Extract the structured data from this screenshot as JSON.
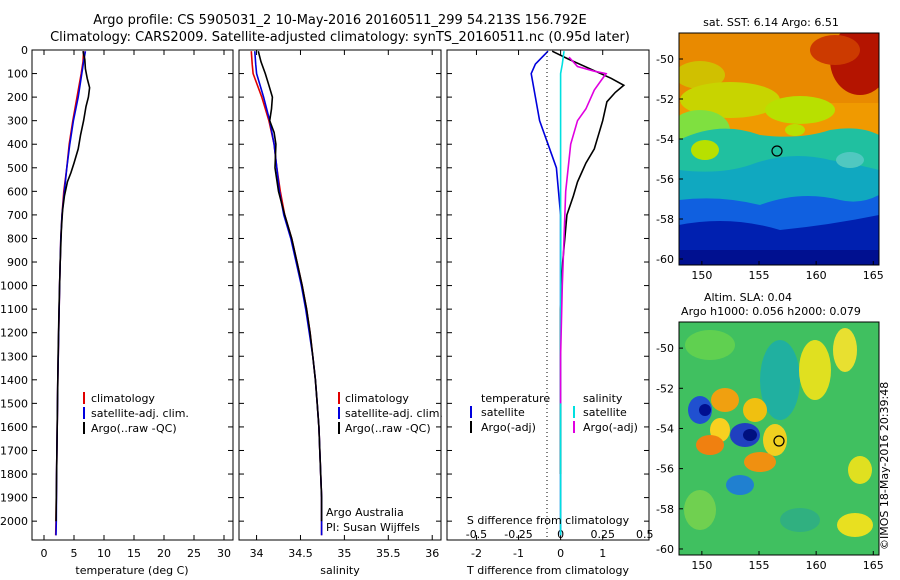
{
  "header": {
    "title": "Argo profile: CS 5905031_2 10-May-2016 20160511_299 54.213S 156.792E",
    "subtitle": "Climatology: CARS2009. Satellite-adjusted climatology: synTS_20160511.nc (0.95d later)"
  },
  "colors": {
    "climatology": "#e00000",
    "satellite": "#0000dd",
    "argo": "#000000",
    "satellite_salinity": "#00e0e0",
    "argo_salinity": "#e000e0"
  },
  "credits": {
    "line1": "Argo Australia",
    "line2": "PI: Susan Wijffels"
  },
  "stamp": "©IMOS 18-May-2016 20:39:48",
  "chart_data": [
    {
      "id": "temperature",
      "type": "line",
      "xlabel": "temperature (deg C)",
      "ylabel": "",
      "xlim": [
        -2,
        31.5
      ],
      "ylim": [
        2080,
        0
      ],
      "xticks": [
        0,
        5,
        10,
        15,
        20,
        25,
        30
      ],
      "yticks": [
        0,
        100,
        200,
        300,
        400,
        500,
        600,
        700,
        800,
        900,
        1000,
        1100,
        1200,
        1300,
        1400,
        1500,
        1600,
        1700,
        1800,
        1900,
        2000
      ],
      "legend": [
        "climatology",
        "satellite-adj. clim.",
        "Argo(..raw -QC)"
      ],
      "series": [
        {
          "name": "climatology",
          "color": "#e00000",
          "points": [
            [
              6.6,
              5
            ],
            [
              6.5,
              50
            ],
            [
              6.2,
              100
            ],
            [
              5.5,
              200
            ],
            [
              4.8,
              300
            ],
            [
              4.2,
              400
            ],
            [
              3.8,
              500
            ],
            [
              3.3,
              600
            ],
            [
              3.0,
              700
            ],
            [
              2.8,
              800
            ],
            [
              2.6,
              1000
            ],
            [
              2.45,
              1200
            ],
            [
              2.3,
              1400
            ],
            [
              2.2,
              1600
            ],
            [
              2.1,
              1800
            ],
            [
              2.0,
              2000
            ],
            [
              1.95,
              2060
            ]
          ]
        },
        {
          "name": "satellite-adj. clim.",
          "color": "#0000dd",
          "points": [
            [
              6.9,
              5
            ],
            [
              6.6,
              50
            ],
            [
              6.3,
              100
            ],
            [
              5.7,
              200
            ],
            [
              4.9,
              300
            ],
            [
              4.3,
              400
            ],
            [
              3.8,
              500
            ],
            [
              3.4,
              600
            ],
            [
              3.0,
              700
            ],
            [
              2.8,
              800
            ],
            [
              2.6,
              1000
            ],
            [
              2.45,
              1200
            ],
            [
              2.3,
              1400
            ],
            [
              2.2,
              1600
            ],
            [
              2.1,
              1800
            ],
            [
              2.05,
              2000
            ],
            [
              2.0,
              2060
            ]
          ]
        },
        {
          "name": "Argo(..raw -QC)",
          "color": "#000000",
          "points": [
            [
              6.5,
              5
            ],
            [
              6.8,
              40
            ],
            [
              6.9,
              80
            ],
            [
              7.2,
              120
            ],
            [
              7.6,
              160
            ],
            [
              7.4,
              200
            ],
            [
              7.0,
              240
            ],
            [
              6.6,
              300
            ],
            [
              6.1,
              360
            ],
            [
              5.7,
              420
            ],
            [
              5.0,
              480
            ],
            [
              4.5,
              520
            ],
            [
              3.9,
              560
            ],
            [
              3.4,
              620
            ],
            [
              3.1,
              680
            ],
            [
              2.9,
              760
            ],
            [
              2.7,
              900
            ],
            [
              2.5,
              1100
            ],
            [
              2.35,
              1300
            ],
            [
              2.25,
              1500
            ],
            [
              2.15,
              1700
            ],
            [
              2.05,
              1900
            ],
            [
              2.0,
              2000
            ]
          ]
        }
      ]
    },
    {
      "id": "salinity",
      "type": "line",
      "xlabel": "salinity",
      "xlim": [
        33.8,
        36.1
      ],
      "ylim": [
        2080,
        0
      ],
      "xticks": [
        34,
        34.5,
        35,
        35.5,
        36
      ],
      "legend": [
        "climatology",
        "satellite-adj. clim.",
        "Argo(..raw -QC)"
      ],
      "series": [
        {
          "name": "climatology",
          "color": "#e00000",
          "points": [
            [
              33.94,
              5
            ],
            [
              33.95,
              60
            ],
            [
              33.96,
              100
            ],
            [
              34.06,
              200
            ],
            [
              34.14,
              300
            ],
            [
              34.2,
              400
            ],
            [
              34.23,
              500
            ],
            [
              34.27,
              600
            ],
            [
              34.32,
              700
            ],
            [
              34.4,
              800
            ],
            [
              34.46,
              900
            ],
            [
              34.52,
              1000
            ],
            [
              34.57,
              1100
            ],
            [
              34.61,
              1200
            ],
            [
              34.64,
              1300
            ],
            [
              34.67,
              1400
            ],
            [
              34.69,
              1500
            ],
            [
              34.71,
              1600
            ],
            [
              34.72,
              1700
            ],
            [
              34.73,
              1800
            ],
            [
              34.74,
              1900
            ],
            [
              34.74,
              2000
            ],
            [
              34.74,
              2060
            ]
          ]
        },
        {
          "name": "satellite-adj. clim.",
          "color": "#0000dd",
          "points": [
            [
              33.98,
              5
            ],
            [
              33.99,
              60
            ],
            [
              34.0,
              100
            ],
            [
              34.08,
              200
            ],
            [
              34.15,
              300
            ],
            [
              34.2,
              400
            ],
            [
              34.23,
              500
            ],
            [
              34.26,
              600
            ],
            [
              34.31,
              700
            ],
            [
              34.39,
              800
            ],
            [
              34.45,
              900
            ],
            [
              34.51,
              1000
            ],
            [
              34.56,
              1100
            ],
            [
              34.6,
              1200
            ],
            [
              34.64,
              1300
            ],
            [
              34.67,
              1400
            ],
            [
              34.69,
              1500
            ],
            [
              34.71,
              1600
            ],
            [
              34.72,
              1700
            ],
            [
              34.73,
              1800
            ],
            [
              34.74,
              1900
            ],
            [
              34.74,
              2000
            ],
            [
              34.74,
              2060
            ]
          ]
        },
        {
          "name": "Argo(..raw -QC)",
          "color": "#000000",
          "points": [
            [
              34.02,
              5
            ],
            [
              34.05,
              50
            ],
            [
              34.1,
              100
            ],
            [
              34.14,
              150
            ],
            [
              34.18,
              200
            ],
            [
              34.17,
              250
            ],
            [
              34.15,
              300
            ],
            [
              34.2,
              350
            ],
            [
              34.22,
              400
            ],
            [
              34.21,
              500
            ],
            [
              34.25,
              600
            ],
            [
              34.32,
              700
            ],
            [
              34.4,
              800
            ],
            [
              34.46,
              900
            ],
            [
              34.52,
              1000
            ],
            [
              34.57,
              1100
            ],
            [
              34.61,
              1200
            ],
            [
              34.64,
              1300
            ],
            [
              34.67,
              1400
            ],
            [
              34.69,
              1500
            ],
            [
              34.71,
              1600
            ],
            [
              34.72,
              1700
            ],
            [
              34.73,
              1800
            ],
            [
              34.74,
              1900
            ],
            [
              34.74,
              2000
            ]
          ]
        }
      ]
    },
    {
      "id": "difference",
      "type": "line",
      "xlabel": "T difference from climatology",
      "x2label": "S difference from climatology",
      "xlim": [
        -2.7,
        2.1
      ],
      "x2lim": [
        -0.675,
        0.525
      ],
      "ylim": [
        2080,
        0
      ],
      "xticks": [
        -2,
        -1,
        0,
        1
      ],
      "xtick_labels": [
        "-2",
        "-1",
        "0",
        "1"
      ],
      "x2ticks": [
        -0.5,
        -0.25,
        0,
        0.25,
        0.5
      ],
      "x2tick_labels": [
        "-0.5",
        "-0.25",
        "0",
        "0.25",
        "0.5"
      ],
      "legend_temperature": {
        "title": "temperature",
        "items": [
          "satellite",
          "Argo(-adj)"
        ]
      },
      "legend_salinity": {
        "title": "salinity",
        "items": [
          "satellite",
          "Argo(-adj)"
        ]
      },
      "series": [
        {
          "name": "temperature satellite",
          "color": "#0000dd",
          "axis": "T",
          "points": [
            [
              -0.3,
              5
            ],
            [
              -0.6,
              60
            ],
            [
              -0.7,
              100
            ],
            [
              -0.6,
              200
            ],
            [
              -0.5,
              300
            ],
            [
              -0.3,
              400
            ],
            [
              -0.1,
              500
            ],
            [
              -0.05,
              600
            ],
            [
              0,
              700
            ],
            [
              0,
              1000
            ],
            [
              0,
              1500
            ],
            [
              0,
              2060
            ]
          ]
        },
        {
          "name": "temperature Argo(-adj)",
          "color": "#000000",
          "axis": "T",
          "points": [
            [
              -0.2,
              5
            ],
            [
              0.2,
              40
            ],
            [
              0.7,
              80
            ],
            [
              1.2,
              120
            ],
            [
              1.5,
              150
            ],
            [
              1.3,
              180
            ],
            [
              1.1,
              220
            ],
            [
              1.0,
              300
            ],
            [
              0.9,
              360
            ],
            [
              0.8,
              420
            ],
            [
              0.6,
              480
            ],
            [
              0.5,
              520
            ],
            [
              0.4,
              560
            ],
            [
              0.3,
              620
            ],
            [
              0.15,
              700
            ],
            [
              0.1,
              800
            ],
            [
              0.05,
              900
            ],
            [
              0,
              1100
            ],
            [
              0,
              1500
            ],
            [
              0,
              1800
            ]
          ]
        },
        {
          "name": "salinity satellite",
          "color": "#00e0e0",
          "axis": "S",
          "points": [
            [
              0.02,
              5
            ],
            [
              0.01,
              60
            ],
            [
              0.0,
              100
            ],
            [
              0,
              300
            ],
            [
              0,
              600
            ],
            [
              0,
              1000
            ],
            [
              0,
              1500
            ],
            [
              0,
              1900
            ],
            [
              0,
              2060
            ]
          ]
        },
        {
          "name": "salinity Argo(-adj)",
          "color": "#e000e0",
          "axis": "S",
          "points": [
            [
              0.05,
              30
            ],
            [
              0.1,
              70
            ],
            [
              0.2,
              90
            ],
            [
              0.27,
              100
            ],
            [
              0.24,
              130
            ],
            [
              0.2,
              170
            ],
            [
              0.15,
              250
            ],
            [
              0.1,
              300
            ],
            [
              0.06,
              400
            ],
            [
              0.03,
              600
            ],
            [
              0.02,
              800
            ],
            [
              0.01,
              1000
            ],
            [
              0,
              1300
            ],
            [
              0,
              1500
            ]
          ]
        }
      ]
    }
  ],
  "maps": [
    {
      "id": "sst",
      "title": "sat. SST: 6.14  Argo: 6.51",
      "title2": "",
      "xticks": [
        "150",
        "155",
        "160",
        "165"
      ],
      "yticks": [
        "-50",
        "-52",
        "-54",
        "-56",
        "-58",
        "-60"
      ]
    },
    {
      "id": "sla",
      "title": "Altim. SLA: 0.04",
      "title2": "Argo h1000: 0.056 h2000: 0.079",
      "xticks": [
        "150",
        "155",
        "160",
        "165"
      ],
      "yticks": [
        "-50",
        "-52",
        "-54",
        "-56",
        "-58",
        "-60"
      ]
    }
  ]
}
